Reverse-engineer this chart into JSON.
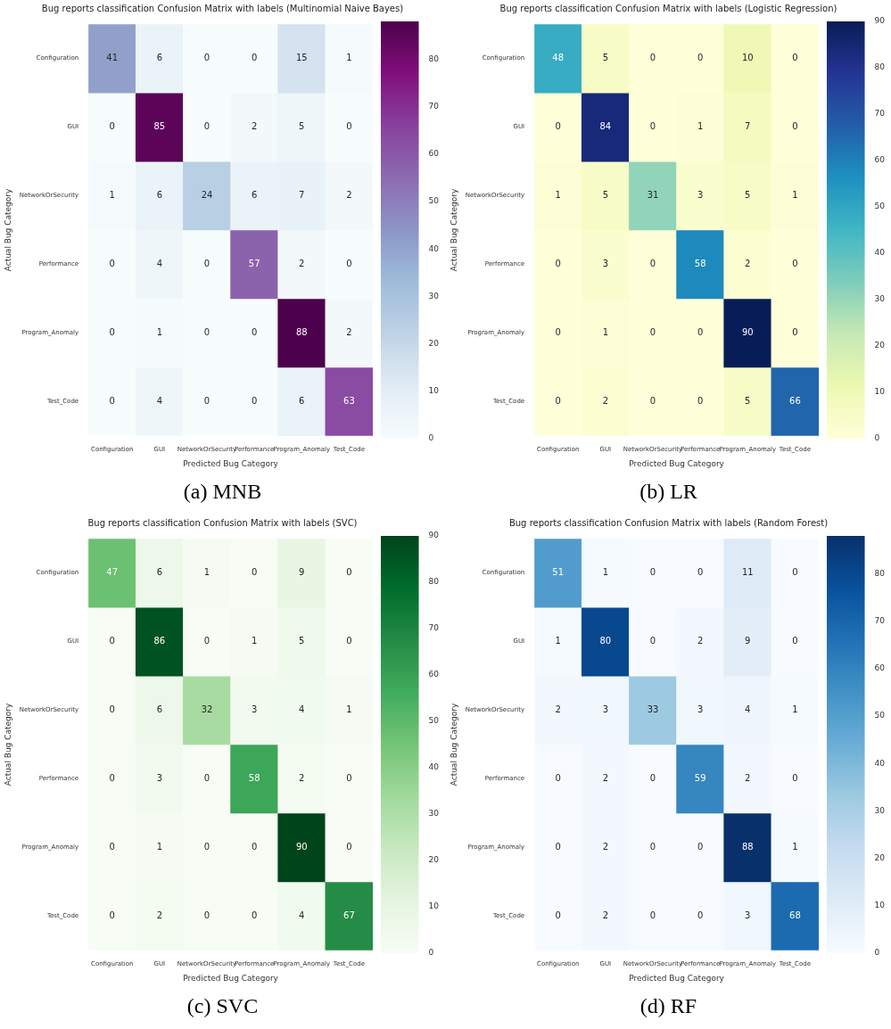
{
  "chart_data": [
    {
      "type": "heatmap",
      "title": "Bug reports classification Confusion Matrix with labels (Multinomial Naive Bayes)",
      "xlabel": "Predicted Bug Category",
      "ylabel": "Actual Bug Category",
      "categories": [
        "Configuration",
        "GUI",
        "NetworkOrSecurity",
        "Performance",
        "Program_Anomaly",
        "Test_Code"
      ],
      "y_categories": [
        "Configuration",
        "GUI",
        "NetworkOrSecurity",
        "Performance",
        "Program_Anomaly",
        "Test_Code"
      ],
      "cells": [
        [
          41,
          6,
          0,
          0,
          15,
          1
        ],
        [
          0,
          85,
          0,
          2,
          5,
          0
        ],
        [
          1,
          6,
          24,
          6,
          7,
          2
        ],
        [
          0,
          4,
          0,
          57,
          2,
          0
        ],
        [
          0,
          1,
          0,
          0,
          88,
          2
        ],
        [
          0,
          4,
          0,
          0,
          6,
          63
        ]
      ],
      "clim": [
        0,
        88
      ],
      "cticks": [
        0,
        10,
        20,
        30,
        40,
        50,
        60,
        70,
        80
      ],
      "colors": [
        "#f7fcfd",
        "#e0ecf4",
        "#bfd3e6",
        "#9ebcda",
        "#8c96c6",
        "#8c6bb1",
        "#88419d",
        "#810f7c",
        "#4d004b"
      ],
      "data_labels": true,
      "annotations": [
        "(a) MNB"
      ]
    },
    {
      "type": "heatmap",
      "title": "Bug reports classification Confusion Matrix with labels (Logistic Regression)",
      "xlabel": "Predicted Bug Category",
      "ylabel": "Actual Bug Category",
      "categories": [
        "Configuration",
        "GUI",
        "NetworkOrSecurity",
        "Performance",
        "Program_Anomaly",
        "Test_Code"
      ],
      "y_categories": [
        "Configuration",
        "GUI",
        "NetworkOrSecurity",
        "Performance",
        "Program_Anomaly",
        "Test_Code"
      ],
      "cells": [
        [
          48,
          5,
          0,
          0,
          10,
          0
        ],
        [
          0,
          84,
          0,
          1,
          7,
          0
        ],
        [
          1,
          5,
          31,
          3,
          5,
          1
        ],
        [
          0,
          3,
          0,
          58,
          2,
          0
        ],
        [
          0,
          1,
          0,
          0,
          90,
          0
        ],
        [
          0,
          2,
          0,
          0,
          5,
          66
        ]
      ],
      "clim": [
        0,
        90
      ],
      "cticks": [
        0,
        10,
        20,
        30,
        40,
        50,
        60,
        70,
        80,
        90
      ],
      "colors": [
        "#ffffd9",
        "#edf8b1",
        "#c7e9b4",
        "#7fcdbb",
        "#41b6c4",
        "#1d91c0",
        "#225ea8",
        "#253494",
        "#081d58"
      ],
      "data_labels": true,
      "annotations": [
        "(b) LR"
      ]
    },
    {
      "type": "heatmap",
      "title": "Bug reports classification Confusion Matrix with labels (SVC)",
      "xlabel": "Predicted Bug Category",
      "ylabel": "Actual Bug Category",
      "categories": [
        "Configuration",
        "GUI",
        "NetworkOrSecurity",
        "Performance",
        "Program_Anomaly",
        "Test_Code"
      ],
      "y_categories": [
        "Configuration",
        "GUI",
        "NetworkOrSecurity",
        "Performance",
        "Program_Anomaly",
        "Test_Code"
      ],
      "cells": [
        [
          47,
          6,
          1,
          0,
          9,
          0
        ],
        [
          0,
          86,
          0,
          1,
          5,
          0
        ],
        [
          0,
          6,
          32,
          3,
          4,
          1
        ],
        [
          0,
          3,
          0,
          58,
          2,
          0
        ],
        [
          0,
          1,
          0,
          0,
          90,
          0
        ],
        [
          0,
          2,
          0,
          0,
          4,
          67
        ]
      ],
      "clim": [
        0,
        90
      ],
      "cticks": [
        0,
        10,
        20,
        30,
        40,
        50,
        60,
        70,
        80,
        90
      ],
      "colors": [
        "#f7fcf5",
        "#e5f5e0",
        "#c7e9c0",
        "#a1d99b",
        "#74c476",
        "#41ab5d",
        "#238b45",
        "#006d2c",
        "#00441b"
      ],
      "data_labels": true,
      "annotations": [
        "(c) SVC"
      ]
    },
    {
      "type": "heatmap",
      "title": "Bug reports classification Confusion Matrix with labels (Random Forest)",
      "xlabel": "Predicted Bug Category",
      "ylabel": "Actual Bug Category",
      "categories": [
        "Configuration",
        "GUI",
        "NetworkOrSecurity",
        "Performance",
        "Program_Anomaly",
        "Test_Code"
      ],
      "y_categories": [
        "Configuration",
        "GUI",
        "NetworkOrSecurity",
        "Performance",
        "Program_Anomaly",
        "Test_Code"
      ],
      "cells": [
        [
          51,
          1,
          0,
          0,
          11,
          0
        ],
        [
          1,
          80,
          0,
          2,
          9,
          0
        ],
        [
          2,
          3,
          33,
          3,
          4,
          1
        ],
        [
          0,
          2,
          0,
          59,
          2,
          0
        ],
        [
          0,
          2,
          0,
          0,
          88,
          1
        ],
        [
          0,
          2,
          0,
          0,
          3,
          68
        ]
      ],
      "clim": [
        0,
        88
      ],
      "cticks": [
        0,
        10,
        20,
        30,
        40,
        50,
        60,
        70,
        80
      ],
      "colors": [
        "#f7fbff",
        "#deebf7",
        "#c6dbef",
        "#9ecae1",
        "#6baed6",
        "#4292c6",
        "#2171b5",
        "#08519c",
        "#08306b"
      ],
      "data_labels": true,
      "annotations": [
        "(d) RF"
      ]
    }
  ]
}
